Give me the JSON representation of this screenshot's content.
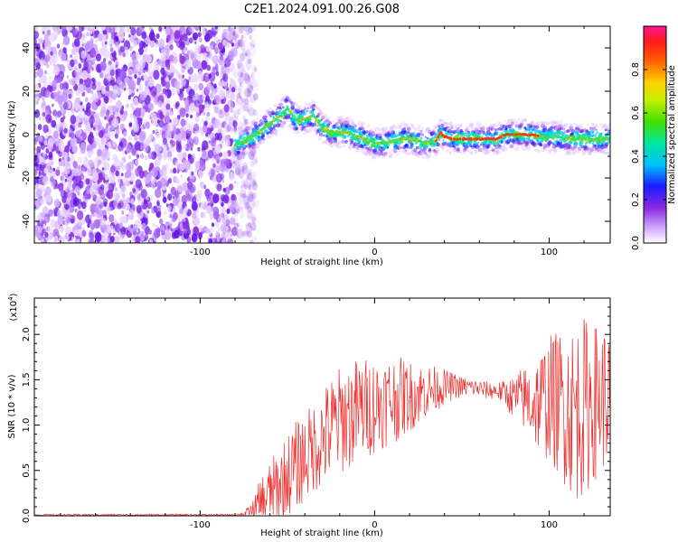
{
  "title": "C2E1.2024.091.00.26.G08",
  "chart_data": [
    {
      "type": "heatmap",
      "title": "C2E1.2024.091.00.26.G08",
      "xlabel": "Height of straight line (km)",
      "ylabel": "Frequency (Hz)",
      "xlim": [
        -195,
        135
      ],
      "ylim": [
        -50,
        50
      ],
      "x_ticks": [
        -100,
        0,
        100
      ],
      "y_ticks": [
        -40,
        -20,
        0,
        20,
        40
      ],
      "grid": false,
      "noise_region_x": [
        -195,
        -72
      ],
      "frequency_track": {
        "x": [
          -80,
          -75,
          -70,
          -65,
          -60,
          -55,
          -50,
          -45,
          -40,
          -35,
          -30,
          -25,
          -20,
          -15,
          -10,
          -5,
          0,
          5,
          10,
          15,
          20,
          25,
          30,
          35,
          38,
          40,
          45,
          50,
          55,
          60,
          65,
          70,
          75,
          80,
          85,
          90,
          95,
          100,
          105,
          110,
          115,
          120,
          125,
          130,
          135
        ],
        "freq": [
          -5,
          -3,
          -1,
          2,
          5,
          8,
          12,
          7,
          7,
          9,
          3,
          1,
          1,
          1,
          -1,
          -2,
          -4,
          -4,
          -3,
          -2,
          -2,
          -3,
          -4,
          -3,
          1,
          -1,
          -2,
          -2,
          -2,
          -2,
          -2,
          -2,
          0,
          0,
          0,
          0,
          -1,
          -1,
          -1,
          -2,
          -2,
          -2,
          -2,
          -2,
          -2
        ]
      },
      "colorbar": {
        "label": "Normalized spectral amplitude",
        "range": [
          0,
          1
        ],
        "ticks": [
          "0.0",
          "0.2",
          "0.4",
          "0.6",
          "0.8"
        ]
      }
    },
    {
      "type": "line",
      "xlabel": "Height of straight line (km)",
      "ylabel": "SNR (10 * v/v)",
      "y_multiplier": "(x10",
      "y_multiplier_exp": "4",
      "y_multiplier_close": ")",
      "xlim": [
        -195,
        135
      ],
      "ylim": [
        0,
        2.4
      ],
      "x_ticks": [
        -100,
        0,
        100
      ],
      "y_ticks": [
        "0.0",
        "0.5",
        "1.0",
        "1.5",
        "2.0"
      ],
      "y_tick_values": [
        0,
        0.5,
        1.0,
        1.5,
        2.0
      ],
      "grid": false,
      "line_color": "#ee3030",
      "series": [
        {
          "x": [
            -195,
            -150,
            -100,
            -80,
            -75,
            -70,
            -65,
            -60,
            -55,
            -50,
            -45,
            -40,
            -35,
            -30,
            -25,
            -20,
            -15,
            -10,
            -5,
            0,
            5,
            10,
            15,
            20,
            25,
            30,
            35,
            40,
            45,
            50,
            55,
            60,
            65,
            70,
            75,
            80,
            85,
            90,
            95,
            100,
            105,
            110,
            115,
            120,
            125,
            130,
            135
          ],
          "mean": [
            0.01,
            0.01,
            0.01,
            0.01,
            0.02,
            0.05,
            0.15,
            0.25,
            0.35,
            0.45,
            0.55,
            0.65,
            0.75,
            0.85,
            0.95,
            1.05,
            1.1,
            1.15,
            1.2,
            1.22,
            1.25,
            1.28,
            1.3,
            1.32,
            1.35,
            1.38,
            1.4,
            1.42,
            1.43,
            1.42,
            1.42,
            1.4,
            1.38,
            1.38,
            1.35,
            1.3,
            1.3,
            1.25,
            1.25,
            1.3,
            1.25,
            1.2,
            1.15,
            1.2,
            1.25,
            1.3,
            1.3
          ],
          "amp": [
            0.01,
            0.01,
            0.01,
            0.01,
            0.03,
            0.1,
            0.3,
            0.35,
            0.4,
            0.45,
            0.5,
            0.5,
            0.5,
            0.55,
            0.6,
            0.6,
            0.6,
            0.6,
            0.55,
            0.55,
            0.5,
            0.5,
            0.45,
            0.4,
            0.35,
            0.3,
            0.25,
            0.2,
            0.15,
            0.12,
            0.1,
            0.1,
            0.1,
            0.1,
            0.15,
            0.25,
            0.35,
            0.45,
            0.6,
            0.7,
            0.8,
            0.9,
            1.0,
            1.0,
            0.9,
            0.8,
            0.8
          ]
        }
      ]
    }
  ]
}
